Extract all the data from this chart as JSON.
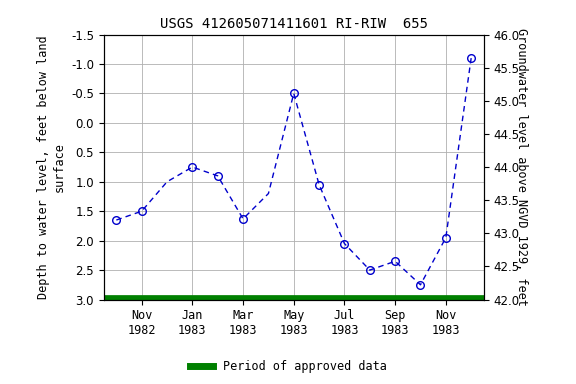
{
  "title": "USGS 412605071411601 RI-RIW  655",
  "y_depth": [
    1.65,
    1.5,
    1.0,
    0.75,
    0.9,
    1.63,
    1.2,
    -0.5,
    1.05,
    2.05,
    2.5,
    2.35,
    2.75,
    1.95,
    -1.1
  ],
  "marker_indices": [
    0,
    1,
    3,
    4,
    5,
    7,
    8,
    9,
    10,
    11,
    12,
    13,
    14
  ],
  "left_ylabel": "Depth to water level, feet below land\nsurface",
  "right_ylabel": "Groundwater level above NGVD 1929, feet",
  "ylim_left": [
    3.0,
    -1.5
  ],
  "ylim_right": [
    42.0,
    46.0
  ],
  "left_yticks": [
    -1.5,
    -1.0,
    -0.5,
    0.0,
    0.5,
    1.0,
    1.5,
    2.0,
    2.5,
    3.0
  ],
  "right_yticks": [
    42.0,
    42.5,
    43.0,
    43.5,
    44.0,
    44.5,
    45.0,
    45.5,
    46.0
  ],
  "xtick_labels": [
    "Nov\n1982",
    "Jan\n1983",
    "Mar\n1983",
    "May\n1983",
    "Jul\n1983",
    "Sep\n1983",
    "Nov\n1983"
  ],
  "xtick_positions": [
    1,
    3,
    5,
    7,
    9,
    11,
    13
  ],
  "line_color": "#0000cc",
  "marker_color": "#0000cc",
  "grid_color": "#b0b0b0",
  "bg_color": "#ffffff",
  "green_line_color": "#008000",
  "legend_label": "Period of approved data",
  "title_fontsize": 10,
  "label_fontsize": 8.5,
  "tick_fontsize": 8.5,
  "n_points": 15
}
